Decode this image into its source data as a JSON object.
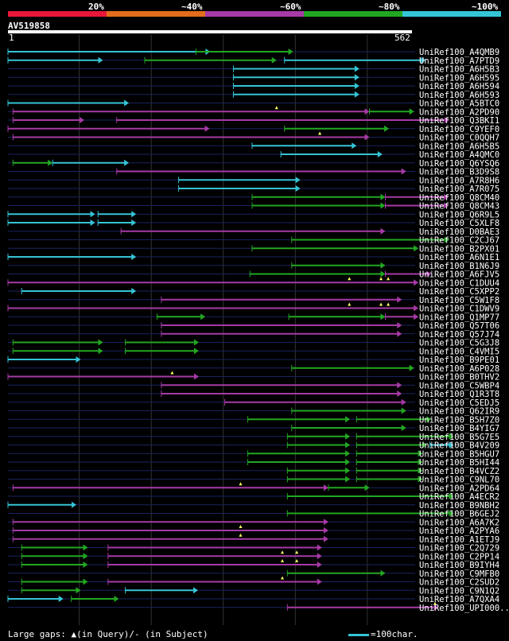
{
  "chart_data": {
    "type": "alignment-map",
    "query": {
      "name": "AV519858",
      "start": 1,
      "end": 562
    },
    "legend": [
      {
        "label": "20%",
        "color": "#e8173a"
      },
      {
        "label": "~40%",
        "color": "#e26e1c"
      },
      {
        "label": "~60%",
        "color": "#a63aa6"
      },
      {
        "label": "~80%",
        "color": "#22a722"
      },
      {
        "label": "~100%",
        "color": "#35c4d6"
      }
    ],
    "colors": {
      "cyan": "#35c4d6",
      "green": "#22a722",
      "magenta": "#a63aa6",
      "gap": "#ffff66"
    },
    "rows": [
      {
        "name": "UniRef100_A4QMB9",
        "segs": [
          {
            "s": 1,
            "e": 282,
            "c": "cyan"
          },
          {
            "s": 262,
            "e": 397,
            "c": "green"
          }
        ],
        "marks": []
      },
      {
        "name": "UniRef100_A7PTD9",
        "segs": [
          {
            "s": 1,
            "e": 133,
            "c": "cyan"
          },
          {
            "s": 191,
            "e": 374,
            "c": "green"
          },
          {
            "s": 385,
            "e": 581,
            "c": "cyan"
          }
        ],
        "marks": []
      },
      {
        "name": "UniRef100_A6H5B3",
        "segs": [
          {
            "s": 314,
            "e": 489,
            "c": "cyan"
          }
        ],
        "marks": []
      },
      {
        "name": "UniRef100_A6H595",
        "segs": [
          {
            "s": 314,
            "e": 489,
            "c": "cyan"
          }
        ],
        "marks": []
      },
      {
        "name": "UniRef100_A6H594",
        "segs": [
          {
            "s": 314,
            "e": 489,
            "c": "cyan"
          }
        ],
        "marks": []
      },
      {
        "name": "UniRef100_A6H593",
        "segs": [
          {
            "s": 314,
            "e": 489,
            "c": "cyan"
          }
        ],
        "marks": []
      },
      {
        "name": "UniRef100_A5BTC0",
        "segs": [
          {
            "s": 1,
            "e": 169,
            "c": "cyan"
          }
        ],
        "marks": []
      },
      {
        "name": "UniRef100_A2PD90",
        "segs": [
          {
            "s": 8,
            "e": 503,
            "c": "magenta"
          },
          {
            "s": 503,
            "e": 565,
            "c": "green"
          }
        ],
        "marks": [
          374
        ]
      },
      {
        "name": "UniRef100_Q3BKI1",
        "segs": [
          {
            "s": 8,
            "e": 107,
            "c": "magenta"
          },
          {
            "s": 152,
            "e": 614,
            "c": "magenta"
          }
        ],
        "marks": []
      },
      {
        "name": "UniRef100_C9YEF0",
        "segs": [
          {
            "s": 1,
            "e": 281,
            "c": "magenta"
          },
          {
            "s": 385,
            "e": 530,
            "c": "green"
          }
        ],
        "marks": []
      },
      {
        "name": "UniRef100_C0QQH7",
        "segs": [
          {
            "s": 8,
            "e": 503,
            "c": "magenta"
          }
        ],
        "marks": [
          434
        ]
      },
      {
        "name": "UniRef100_A6H5B5",
        "segs": [
          {
            "s": 340,
            "e": 485,
            "c": "cyan"
          }
        ],
        "marks": []
      },
      {
        "name": "UniRef100_A4QMC0",
        "segs": [
          {
            "s": 380,
            "e": 521,
            "c": "cyan"
          }
        ],
        "marks": []
      },
      {
        "name": "UniRef100_Q6YSQ6",
        "segs": [
          {
            "s": 8,
            "e": 63,
            "c": "green"
          },
          {
            "s": 63,
            "e": 169,
            "c": "cyan"
          }
        ],
        "marks": []
      },
      {
        "name": "UniRef100_B3D9S8",
        "segs": [
          {
            "s": 152,
            "e": 554,
            "c": "magenta"
          }
        ],
        "marks": []
      },
      {
        "name": "UniRef100_A7R8H6",
        "segs": [
          {
            "s": 238,
            "e": 407,
            "c": "cyan"
          }
        ],
        "marks": []
      },
      {
        "name": "UniRef100_A7R075",
        "segs": [
          {
            "s": 238,
            "e": 407,
            "c": "cyan"
          }
        ],
        "marks": []
      },
      {
        "name": "UniRef100_Q8CM40",
        "segs": [
          {
            "s": 340,
            "e": 525,
            "c": "green"
          },
          {
            "s": 525,
            "e": 613,
            "c": "magenta"
          }
        ],
        "marks": []
      },
      {
        "name": "UniRef100_Q8CM43",
        "segs": [
          {
            "s": 340,
            "e": 525,
            "c": "green"
          },
          {
            "s": 525,
            "e": 613,
            "c": "magenta"
          }
        ],
        "marks": []
      },
      {
        "name": "UniRef100_Q6R9L5",
        "segs": [
          {
            "s": 1,
            "e": 122,
            "c": "cyan"
          },
          {
            "s": 126,
            "e": 179,
            "c": "cyan"
          }
        ],
        "marks": []
      },
      {
        "name": "UniRef100_C5XLF8",
        "segs": [
          {
            "s": 1,
            "e": 122,
            "c": "cyan"
          },
          {
            "s": 126,
            "e": 179,
            "c": "cyan"
          }
        ],
        "marks": []
      },
      {
        "name": "UniRef100_D0BAE3",
        "segs": [
          {
            "s": 158,
            "e": 525,
            "c": "magenta"
          }
        ],
        "marks": []
      },
      {
        "name": "UniRef100_C2CJ67",
        "segs": [
          {
            "s": 395,
            "e": 614,
            "c": "green"
          }
        ],
        "marks": []
      },
      {
        "name": "UniRef100_B2PX01",
        "segs": [
          {
            "s": 340,
            "e": 571,
            "c": "green"
          }
        ],
        "marks": []
      },
      {
        "name": "UniRef100_A6N1E1",
        "segs": [
          {
            "s": 1,
            "e": 179,
            "c": "cyan"
          }
        ],
        "marks": []
      },
      {
        "name": "UniRef100_B1N6J9",
        "segs": [
          {
            "s": 395,
            "e": 525,
            "c": "green"
          }
        ],
        "marks": []
      },
      {
        "name": "UniRef100_A6FJV5",
        "segs": [
          {
            "s": 337,
            "e": 525,
            "c": "green"
          },
          {
            "s": 525,
            "e": 589,
            "c": "magenta"
          }
        ],
        "marks": []
      },
      {
        "name": "UniRef100_C1DUU4",
        "segs": [
          {
            "s": 1,
            "e": 571,
            "c": "magenta"
          }
        ],
        "marks": [
          475,
          519,
          529
        ]
      },
      {
        "name": "UniRef100_C5XPP2",
        "segs": [
          {
            "s": 20,
            "e": 179,
            "c": "cyan"
          }
        ],
        "marks": []
      },
      {
        "name": "UniRef100_C5W1F8",
        "segs": [
          {
            "s": 214,
            "e": 548,
            "c": "magenta"
          }
        ],
        "marks": []
      },
      {
        "name": "UniRef100_C1DWV9",
        "segs": [
          {
            "s": 1,
            "e": 571,
            "c": "magenta"
          }
        ],
        "marks": [
          475,
          519,
          529
        ]
      },
      {
        "name": "UniRef100_Q1MP77",
        "segs": [
          {
            "s": 208,
            "e": 275,
            "c": "green"
          },
          {
            "s": 391,
            "e": 525,
            "c": "green"
          },
          {
            "s": 525,
            "e": 571,
            "c": "magenta"
          }
        ],
        "marks": []
      },
      {
        "name": "UniRef100_Q57T06",
        "segs": [
          {
            "s": 214,
            "e": 548,
            "c": "magenta"
          }
        ],
        "marks": []
      },
      {
        "name": "UniRef100_Q57J74",
        "segs": [
          {
            "s": 214,
            "e": 548,
            "c": "magenta"
          }
        ],
        "marks": []
      },
      {
        "name": "UniRef100_C5G3J8",
        "segs": [
          {
            "s": 8,
            "e": 133,
            "c": "green"
          },
          {
            "s": 164,
            "e": 266,
            "c": "green"
          }
        ],
        "marks": []
      },
      {
        "name": "UniRef100_C4VMI5",
        "segs": [
          {
            "s": 8,
            "e": 133,
            "c": "green"
          },
          {
            "s": 164,
            "e": 266,
            "c": "green"
          }
        ],
        "marks": []
      },
      {
        "name": "UniRef100_B9PE01",
        "segs": [
          {
            "s": 1,
            "e": 102,
            "c": "cyan"
          }
        ],
        "marks": []
      },
      {
        "name": "UniRef100_A6P028",
        "segs": [
          {
            "s": 395,
            "e": 565,
            "c": "green"
          }
        ],
        "marks": []
      },
      {
        "name": "UniRef100_B0THV2",
        "segs": [
          {
            "s": 1,
            "e": 266,
            "c": "magenta"
          }
        ],
        "marks": [
          229
        ]
      },
      {
        "name": "UniRef100_C5WBP4",
        "segs": [
          {
            "s": 214,
            "e": 548,
            "c": "magenta"
          }
        ],
        "marks": []
      },
      {
        "name": "UniRef100_Q1R3T8",
        "segs": [
          {
            "s": 214,
            "e": 548,
            "c": "magenta"
          }
        ],
        "marks": []
      },
      {
        "name": "UniRef100_C5EDJ5",
        "segs": [
          {
            "s": 302,
            "e": 554,
            "c": "magenta"
          }
        ],
        "marks": []
      },
      {
        "name": "UniRef100_Q62IR9",
        "segs": [
          {
            "s": 395,
            "e": 554,
            "c": "green"
          }
        ],
        "marks": []
      },
      {
        "name": "UniRef100_B5H7Z0",
        "segs": [
          {
            "s": 334,
            "e": 476,
            "c": "green"
          },
          {
            "s": 485,
            "e": 589,
            "c": "green"
          }
        ],
        "marks": []
      },
      {
        "name": "UniRef100_B4YIG7",
        "segs": [
          {
            "s": 395,
            "e": 554,
            "c": "green"
          }
        ],
        "marks": []
      },
      {
        "name": "UniRef100_B5G7E5",
        "segs": [
          {
            "s": 389,
            "e": 476,
            "c": "green"
          },
          {
            "s": 485,
            "e": 620,
            "c": "green"
          }
        ],
        "marks": []
      },
      {
        "name": "UniRef100_B4V209",
        "segs": [
          {
            "s": 389,
            "e": 476,
            "c": "green"
          },
          {
            "s": 485,
            "e": 583,
            "c": "green"
          },
          {
            "s": 587,
            "e": 620,
            "c": "cyan"
          }
        ],
        "marks": []
      },
      {
        "name": "UniRef100_B5HGU7",
        "segs": [
          {
            "s": 334,
            "e": 476,
            "c": "green"
          },
          {
            "s": 485,
            "e": 577,
            "c": "green"
          }
        ],
        "marks": []
      },
      {
        "name": "UniRef100_B5HI44",
        "segs": [
          {
            "s": 334,
            "e": 476,
            "c": "green"
          },
          {
            "s": 485,
            "e": 577,
            "c": "green"
          }
        ],
        "marks": []
      },
      {
        "name": "UniRef100_B4VCZ2",
        "segs": [
          {
            "s": 389,
            "e": 476,
            "c": "green"
          },
          {
            "s": 485,
            "e": 577,
            "c": "green"
          }
        ],
        "marks": []
      },
      {
        "name": "UniRef100_C9NL70",
        "segs": [
          {
            "s": 389,
            "e": 476,
            "c": "green"
          },
          {
            "s": 485,
            "e": 577,
            "c": "green"
          }
        ],
        "marks": []
      },
      {
        "name": "UniRef100_A2PD64",
        "segs": [
          {
            "s": 8,
            "e": 446,
            "c": "magenta"
          },
          {
            "s": 446,
            "e": 503,
            "c": "green"
          }
        ],
        "marks": [
          324
        ]
      },
      {
        "name": "UniRef100_A4ECR2",
        "segs": [
          {
            "s": 389,
            "e": 620,
            "c": "green"
          }
        ],
        "marks": []
      },
      {
        "name": "UniRef100_B9NBH2",
        "segs": [
          {
            "s": 1,
            "e": 96,
            "c": "cyan"
          }
        ],
        "marks": []
      },
      {
        "name": "UniRef100_B6GEJ2",
        "segs": [
          {
            "s": 389,
            "e": 620,
            "c": "green"
          }
        ],
        "marks": []
      },
      {
        "name": "UniRef100_A6A7K2",
        "segs": [
          {
            "s": 8,
            "e": 446,
            "c": "magenta"
          }
        ],
        "marks": []
      },
      {
        "name": "UniRef100_A2PYA6",
        "segs": [
          {
            "s": 8,
            "e": 446,
            "c": "magenta"
          }
        ],
        "marks": [
          324
        ]
      },
      {
        "name": "UniRef100_A1ETJ9",
        "segs": [
          {
            "s": 8,
            "e": 446,
            "c": "magenta"
          }
        ],
        "marks": [
          324
        ]
      },
      {
        "name": "UniRef100_C2Q729",
        "segs": [
          {
            "s": 20,
            "e": 112,
            "c": "green"
          },
          {
            "s": 140,
            "e": 437,
            "c": "magenta"
          }
        ],
        "marks": []
      },
      {
        "name": "UniRef100_C2PP14",
        "segs": [
          {
            "s": 20,
            "e": 112,
            "c": "green"
          },
          {
            "s": 140,
            "e": 437,
            "c": "magenta"
          }
        ],
        "marks": [
          382,
          402
        ]
      },
      {
        "name": "UniRef100_B9IYH4",
        "segs": [
          {
            "s": 20,
            "e": 112,
            "c": "green"
          },
          {
            "s": 140,
            "e": 437,
            "c": "magenta"
          }
        ],
        "marks": [
          382,
          402
        ]
      },
      {
        "name": "UniRef100_C9MFB0",
        "segs": [
          {
            "s": 389,
            "e": 525,
            "c": "green"
          }
        ],
        "marks": []
      },
      {
        "name": "UniRef100_C2SUD2",
        "segs": [
          {
            "s": 20,
            "e": 112,
            "c": "green"
          },
          {
            "s": 140,
            "e": 437,
            "c": "magenta"
          }
        ],
        "marks": [
          382
        ]
      },
      {
        "name": "UniRef100_C9N1Q2",
        "segs": [
          {
            "s": 20,
            "e": 102,
            "c": "green"
          },
          {
            "s": 164,
            "e": 265,
            "c": "cyan"
          }
        ],
        "marks": []
      },
      {
        "name": "UniRef100_A7QXA4",
        "segs": [
          {
            "s": 1,
            "e": 78,
            "c": "cyan"
          },
          {
            "s": 89,
            "e": 155,
            "c": "green"
          }
        ],
        "marks": []
      },
      {
        "name": "UniRef100_UPI000...",
        "segs": [
          {
            "s": 389,
            "e": 599,
            "c": "magenta"
          }
        ],
        "marks": [
          594
        ]
      }
    ],
    "footer": {
      "gaps_note": "Large gaps: ▲(in Query)/- (in Subject)",
      "scale_note": "=100char."
    }
  }
}
